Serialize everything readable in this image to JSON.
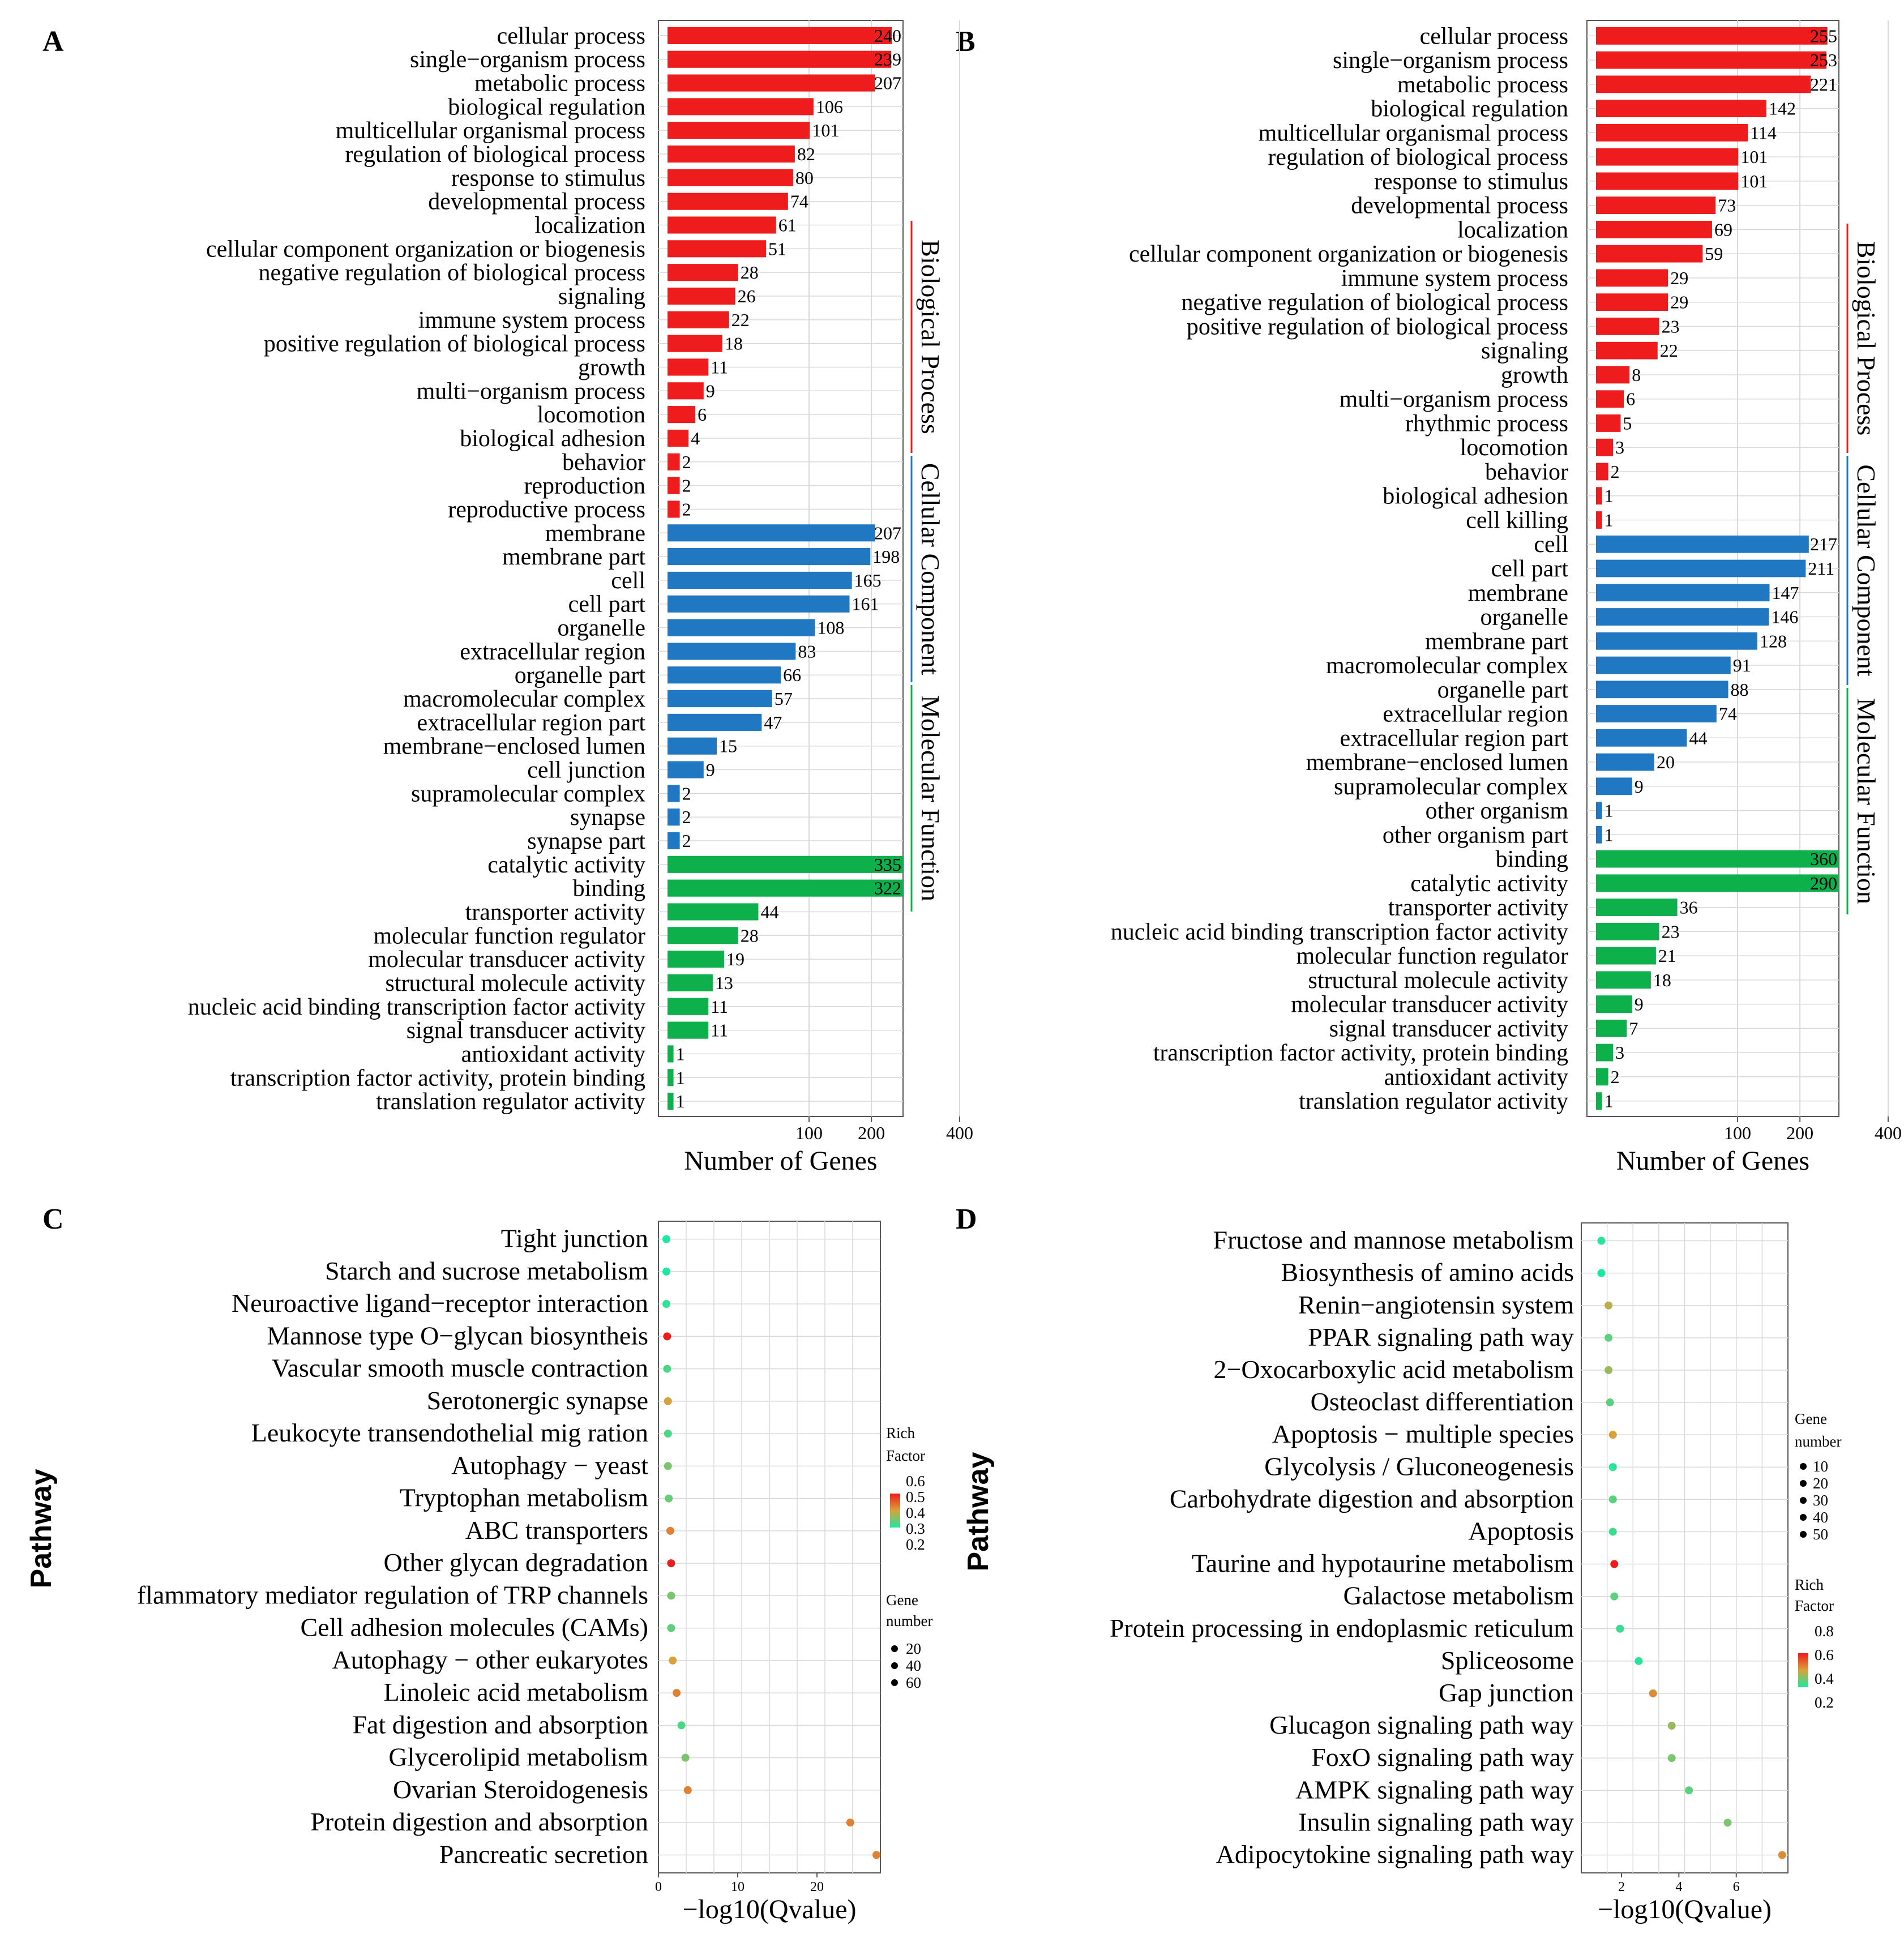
{
  "panels": {
    "A": "A",
    "B": "B",
    "C": "C",
    "D": "D"
  },
  "colors": {
    "biological_process": "#ee1c1c",
    "cellular_component": "#1f78c1",
    "molecular_function": "#0db04b",
    "grid": "#d9d9d9",
    "rich_low": "#1de8a0",
    "rich_mid": "#d8a23a",
    "rich_high": "#ee1c1c"
  },
  "chart_data": [
    {
      "id": "A",
      "type": "bar",
      "orientation": "horizontal",
      "xlabel": "Number of Genes",
      "x_ticks": [
        "100",
        "200",
        "400"
      ],
      "x_scale": "sqrt",
      "groups": [
        {
          "name": "Biological Process",
          "color": "#ee1c1c"
        },
        {
          "name": "Cellular Component",
          "color": "#1f78c1"
        },
        {
          "name": "Molecular Function",
          "color": "#0db04b"
        }
      ],
      "categories": [
        {
          "label": "cellular process",
          "value": 240,
          "group": 0
        },
        {
          "label": "single−organism process",
          "value": 239,
          "group": 0
        },
        {
          "label": "metabolic process",
          "value": 207,
          "group": 0
        },
        {
          "label": "biological regulation",
          "value": 106,
          "group": 0
        },
        {
          "label": "multicellular organismal process",
          "value": 101,
          "group": 0
        },
        {
          "label": "regulation of biological process",
          "value": 82,
          "group": 0
        },
        {
          "label": "response to stimulus",
          "value": 80,
          "group": 0
        },
        {
          "label": "developmental process",
          "value": 74,
          "group": 0
        },
        {
          "label": "localization",
          "value": 61,
          "group": 0
        },
        {
          "label": "cellular component organization or biogenesis",
          "value": 51,
          "group": 0
        },
        {
          "label": "negative regulation of biological process",
          "value": 28,
          "group": 0
        },
        {
          "label": "signaling",
          "value": 26,
          "group": 0
        },
        {
          "label": "immune system process",
          "value": 22,
          "group": 0
        },
        {
          "label": "positive regulation of biological process",
          "value": 18,
          "group": 0
        },
        {
          "label": "growth",
          "value": 11,
          "group": 0
        },
        {
          "label": "multi−organism process",
          "value": 9,
          "group": 0
        },
        {
          "label": "locomotion",
          "value": 6,
          "group": 0
        },
        {
          "label": "biological adhesion",
          "value": 4,
          "group": 0
        },
        {
          "label": "behavior",
          "value": 2,
          "group": 0
        },
        {
          "label": "reproduction",
          "value": 2,
          "group": 0
        },
        {
          "label": "reproductive process",
          "value": 2,
          "group": 0
        },
        {
          "label": "membrane",
          "value": 207,
          "group": 1
        },
        {
          "label": "membrane part",
          "value": 198,
          "group": 1
        },
        {
          "label": "cell",
          "value": 165,
          "group": 1
        },
        {
          "label": "cell part",
          "value": 161,
          "group": 1
        },
        {
          "label": "organelle",
          "value": 108,
          "group": 1
        },
        {
          "label": "extracellular region",
          "value": 83,
          "group": 1
        },
        {
          "label": "organelle part",
          "value": 66,
          "group": 1
        },
        {
          "label": "macromolecular complex",
          "value": 57,
          "group": 1
        },
        {
          "label": "extracellular region part",
          "value": 47,
          "group": 1
        },
        {
          "label": "membrane−enclosed lumen",
          "value": 15,
          "group": 1
        },
        {
          "label": "cell junction",
          "value": 9,
          "group": 1
        },
        {
          "label": "supramolecular complex",
          "value": 2,
          "group": 1
        },
        {
          "label": "synapse",
          "value": 2,
          "group": 1
        },
        {
          "label": "synapse part",
          "value": 2,
          "group": 1
        },
        {
          "label": "catalytic activity",
          "value": 335,
          "group": 2
        },
        {
          "label": "binding",
          "value": 322,
          "group": 2
        },
        {
          "label": "transporter activity",
          "value": 44,
          "group": 2
        },
        {
          "label": "molecular function regulator",
          "value": 28,
          "group": 2
        },
        {
          "label": "molecular transducer activity",
          "value": 19,
          "group": 2
        },
        {
          "label": "structural molecule activity",
          "value": 13,
          "group": 2
        },
        {
          "label": "nucleic acid binding transcription factor activity",
          "value": 11,
          "group": 2
        },
        {
          "label": "signal transducer activity",
          "value": 11,
          "group": 2
        },
        {
          "label": "antioxidant activity",
          "value": 1,
          "group": 2
        },
        {
          "label": "transcription factor activity, protein binding",
          "value": 1,
          "group": 2
        },
        {
          "label": "translation regulator activity",
          "value": 1,
          "group": 2
        }
      ]
    },
    {
      "id": "B",
      "type": "bar",
      "orientation": "horizontal",
      "xlabel": "Number of Genes",
      "x_ticks": [
        "100",
        "200",
        "400"
      ],
      "x_scale": "sqrt",
      "groups": [
        {
          "name": "Biological Process",
          "color": "#ee1c1c"
        },
        {
          "name": "Cellular Component",
          "color": "#1f78c1"
        },
        {
          "name": "Molecular Function",
          "color": "#0db04b"
        }
      ],
      "categories": [
        {
          "label": "cellular process",
          "value": 255,
          "group": 0
        },
        {
          "label": "single−organism process",
          "value": 253,
          "group": 0
        },
        {
          "label": "metabolic process",
          "value": 221,
          "group": 0
        },
        {
          "label": "biological regulation",
          "value": 142,
          "group": 0
        },
        {
          "label": "multicellular organismal process",
          "value": 114,
          "group": 0
        },
        {
          "label": "regulation of biological process",
          "value": 101,
          "group": 0
        },
        {
          "label": "response to stimulus",
          "value": 101,
          "group": 0
        },
        {
          "label": "developmental process",
          "value": 73,
          "group": 0
        },
        {
          "label": "localization",
          "value": 69,
          "group": 0
        },
        {
          "label": "cellular component organization or biogenesis",
          "value": 59,
          "group": 0
        },
        {
          "label": "immune system process",
          "value": 29,
          "group": 0
        },
        {
          "label": "negative regulation of biological process",
          "value": 29,
          "group": 0
        },
        {
          "label": "positive regulation of biological process",
          "value": 23,
          "group": 0
        },
        {
          "label": "signaling",
          "value": 22,
          "group": 0
        },
        {
          "label": "growth",
          "value": 8,
          "group": 0
        },
        {
          "label": "multi−organism process",
          "value": 6,
          "group": 0
        },
        {
          "label": "rhythmic process",
          "value": 5,
          "group": 0
        },
        {
          "label": "locomotion",
          "value": 3,
          "group": 0
        },
        {
          "label": "behavior",
          "value": 2,
          "group": 0
        },
        {
          "label": "biological adhesion",
          "value": 1,
          "group": 0
        },
        {
          "label": "cell killing",
          "value": 1,
          "group": 0
        },
        {
          "label": "cell",
          "value": 217,
          "group": 1
        },
        {
          "label": "cell part",
          "value": 211,
          "group": 1
        },
        {
          "label": "membrane",
          "value": 147,
          "group": 1
        },
        {
          "label": "organelle",
          "value": 146,
          "group": 1
        },
        {
          "label": "membrane part",
          "value": 128,
          "group": 1
        },
        {
          "label": "macromolecular complex",
          "value": 91,
          "group": 1
        },
        {
          "label": "organelle part",
          "value": 88,
          "group": 1
        },
        {
          "label": "extracellular region",
          "value": 74,
          "group": 1
        },
        {
          "label": "extracellular region part",
          "value": 44,
          "group": 1
        },
        {
          "label": "membrane−enclosed lumen",
          "value": 20,
          "group": 1
        },
        {
          "label": "supramolecular complex",
          "value": 9,
          "group": 1
        },
        {
          "label": "other organism",
          "value": 1,
          "group": 1
        },
        {
          "label": "other organism part",
          "value": 1,
          "group": 1
        },
        {
          "label": "binding",
          "value": 360,
          "group": 2
        },
        {
          "label": "catalytic activity",
          "value": 290,
          "group": 2
        },
        {
          "label": "transporter activity",
          "value": 36,
          "group": 2
        },
        {
          "label": "nucleic acid binding transcription factor activity",
          "value": 23,
          "group": 2
        },
        {
          "label": "molecular function regulator",
          "value": 21,
          "group": 2
        },
        {
          "label": "structural molecule activity",
          "value": 18,
          "group": 2
        },
        {
          "label": "molecular transducer activity",
          "value": 9,
          "group": 2
        },
        {
          "label": "signal transducer activity",
          "value": 7,
          "group": 2
        },
        {
          "label": "transcription factor activity, protein binding",
          "value": 3,
          "group": 2
        },
        {
          "label": "antioxidant activity",
          "value": 2,
          "group": 2
        },
        {
          "label": "translation regulator activity",
          "value": 1,
          "group": 2
        }
      ]
    },
    {
      "id": "C",
      "type": "scatter",
      "ylabel": "Pathway",
      "xlabel": "−log10(Qvalue)",
      "xlim": [
        0,
        28
      ],
      "x_ticks": [
        0,
        10,
        20
      ],
      "legend": {
        "rich_title": [
          "Rich",
          "Factor"
        ],
        "rich_ticks": [
          "0.6",
          "0.5",
          "0.4",
          "0.3",
          "0.2"
        ],
        "gene_title": [
          "Gene",
          "number"
        ],
        "gene_ticks": [
          "20",
          "40",
          "60"
        ],
        "placement": "right"
      },
      "points": [
        {
          "pathway": "Tight junction",
          "x": 1.0,
          "rich": 0.2
        },
        {
          "pathway": "Starch and sucrose metabolism",
          "x": 1.0,
          "rich": 0.2
        },
        {
          "pathway": "Neuroactive ligand−receptor interaction",
          "x": 1.0,
          "rich": 0.22
        },
        {
          "pathway": "Mannose type O−glycan biosyntheis",
          "x": 1.1,
          "rich": 0.6
        },
        {
          "pathway": "Vascular smooth muscle contraction",
          "x": 1.1,
          "rich": 0.25
        },
        {
          "pathway": "Serotonergic synapse",
          "x": 1.2,
          "rich": 0.4
        },
        {
          "pathway": "Leukocyte transendothelial mig ration",
          "x": 1.2,
          "rich": 0.25
        },
        {
          "pathway": "Autophagy − yeast",
          "x": 1.2,
          "rich": 0.3
        },
        {
          "pathway": "Tryptophan metabolism",
          "x": 1.3,
          "rich": 0.28
        },
        {
          "pathway": "ABC transporters",
          "x": 1.5,
          "rich": 0.45
        },
        {
          "pathway": "Other glycan degradation",
          "x": 1.6,
          "rich": 0.6
        },
        {
          "pathway": "flammatory mediator regulation of TRP channels",
          "x": 1.6,
          "rich": 0.3
        },
        {
          "pathway": "Cell adhesion molecules (CAMs)",
          "x": 1.6,
          "rich": 0.27
        },
        {
          "pathway": "Autophagy − other eukaryotes",
          "x": 1.8,
          "rich": 0.4
        },
        {
          "pathway": "Linoleic acid metabolism",
          "x": 2.3,
          "rich": 0.45
        },
        {
          "pathway": "Fat digestion and absorption",
          "x": 2.9,
          "rich": 0.25
        },
        {
          "pathway": "Glycerolipid metabolism",
          "x": 3.4,
          "rich": 0.3
        },
        {
          "pathway": "Ovarian Steroidogenesis",
          "x": 3.7,
          "rich": 0.45
        },
        {
          "pathway": "Protein digestion and absorption",
          "x": 24.2,
          "rich": 0.45
        },
        {
          "pathway": "Pancreatic secretion",
          "x": 27.5,
          "rich": 0.45
        }
      ]
    },
    {
      "id": "D",
      "type": "scatter",
      "ylabel": "Pathway",
      "xlabel": "−log10(Qvalue)",
      "xlim": [
        0.6,
        7.8
      ],
      "x_ticks": [
        2,
        4,
        6
      ],
      "legend": {
        "gene_title": [
          "Gene",
          "number"
        ],
        "gene_ticks": [
          "10",
          "20",
          "30",
          "40",
          "50"
        ],
        "rich_title": [
          "Rich",
          "Factor"
        ],
        "rich_ticks": [
          "0.8",
          "0.6",
          "0.4",
          "0.2"
        ],
        "placement": "right"
      },
      "points": [
        {
          "pathway": "Fructose and mannose metabolism",
          "x": 1.3,
          "rich": 0.22
        },
        {
          "pathway": "Biosynthesis of amino acids",
          "x": 1.3,
          "rich": 0.2
        },
        {
          "pathway": "Renin−angiotensin system",
          "x": 1.55,
          "rich": 0.45
        },
        {
          "pathway": "PPAR signaling path way",
          "x": 1.55,
          "rich": 0.3
        },
        {
          "pathway": "2−Oxocarboxylic acid metabolism",
          "x": 1.55,
          "rich": 0.4
        },
        {
          "pathway": "Osteoclast differentiation",
          "x": 1.6,
          "rich": 0.3
        },
        {
          "pathway": "Apoptosis − multiple species",
          "x": 1.7,
          "rich": 0.5
        },
        {
          "pathway": "Glycolysis / Gluconeogenesis",
          "x": 1.7,
          "rich": 0.22
        },
        {
          "pathway": "Carbohydrate digestion and absorption",
          "x": 1.7,
          "rich": 0.3
        },
        {
          "pathway": "Apoptosis",
          "x": 1.7,
          "rich": 0.25
        },
        {
          "pathway": "Taurine and hypotaurine metabolism",
          "x": 1.75,
          "rich": 0.8
        },
        {
          "pathway": "Galactose metabolism",
          "x": 1.75,
          "rich": 0.3
        },
        {
          "pathway": "Protein processing in endoplasmic reticulum",
          "x": 1.95,
          "rich": 0.25
        },
        {
          "pathway": "Spliceosome",
          "x": 2.6,
          "rich": 0.22
        },
        {
          "pathway": "Gap junction",
          "x": 3.1,
          "rich": 0.55
        },
        {
          "pathway": "Glucagon signaling path way",
          "x": 3.75,
          "rich": 0.4
        },
        {
          "pathway": "FoxO signaling path way",
          "x": 3.75,
          "rich": 0.35
        },
        {
          "pathway": "AMPK signaling path way",
          "x": 4.35,
          "rich": 0.3
        },
        {
          "pathway": "Insulin signaling path way",
          "x": 5.7,
          "rich": 0.35
        },
        {
          "pathway": "Adipocytokine signaling path way",
          "x": 7.6,
          "rich": 0.55
        }
      ]
    }
  ]
}
